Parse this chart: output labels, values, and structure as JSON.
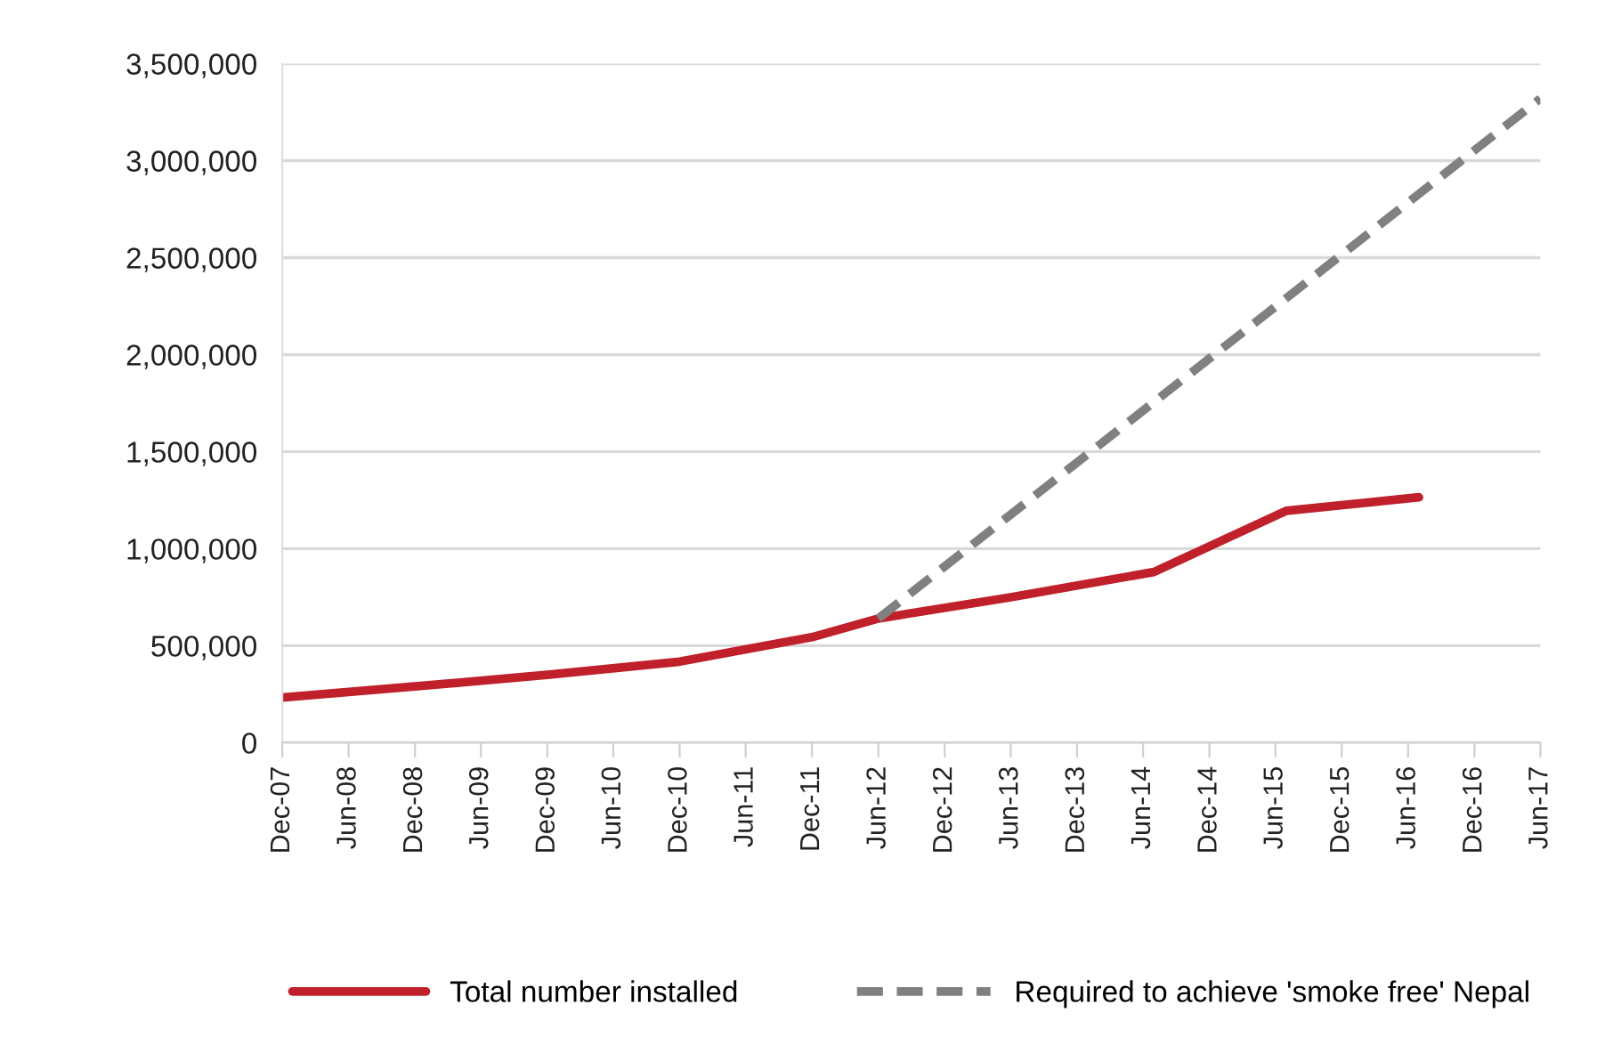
{
  "chart_data": {
    "type": "line",
    "xlim": [
      "2007-12",
      "2017-06"
    ],
    "xticks": [
      {
        "value": "2007-12",
        "label": "Dec-07"
      },
      {
        "value": "2008-06",
        "label": "Jun-08"
      },
      {
        "value": "2008-12",
        "label": "Dec-08"
      },
      {
        "value": "2009-06",
        "label": "Jun-09"
      },
      {
        "value": "2009-12",
        "label": "Dec-09"
      },
      {
        "value": "2010-06",
        "label": "Jun-10"
      },
      {
        "value": "2010-12",
        "label": "Dec-10"
      },
      {
        "value": "2011-06",
        "label": "Jun-11"
      },
      {
        "value": "2011-12",
        "label": "Dec-11"
      },
      {
        "value": "2012-06",
        "label": "Jun-12"
      },
      {
        "value": "2012-12",
        "label": "Dec-12"
      },
      {
        "value": "2013-06",
        "label": "Jun-13"
      },
      {
        "value": "2013-12",
        "label": "Dec-13"
      },
      {
        "value": "2014-06",
        "label": "Jun-14"
      },
      {
        "value": "2014-12",
        "label": "Dec-14"
      },
      {
        "value": "2015-06",
        "label": "Jun-15"
      },
      {
        "value": "2015-12",
        "label": "Dec-15"
      },
      {
        "value": "2016-06",
        "label": "Jun-16"
      },
      {
        "value": "2016-12",
        "label": "Dec-16"
      },
      {
        "value": "2017-06",
        "label": "Jun-17"
      }
    ],
    "ylim": [
      0,
      3500000
    ],
    "yticks": [
      0,
      {
        "value": 500000,
        "label": "500,000"
      },
      {
        "value": 1000000,
        "label": "1,000,000"
      },
      {
        "value": 1500000,
        "label": "1,500,000"
      },
      {
        "value": 2000000,
        "label": "2,000,000"
      },
      {
        "value": 2500000,
        "label": "2,500,000"
      },
      {
        "value": 3000000,
        "label": "3,000,000"
      },
      {
        "value": 3500000,
        "label": "3,500,000"
      }
    ],
    "grid": "y",
    "legend": "bottom",
    "series": [
      {
        "name": "Total number installed",
        "color": "#c0202a",
        "line_style": "solid",
        "x": [
          "2007-12",
          "2008-12",
          "2009-12",
          "2010-12",
          "2011-12",
          "2012-06",
          "2013-06",
          "2014-07",
          "2015-07",
          "2016-07"
        ],
        "values": [
          233000,
          290000,
          350000,
          418000,
          544000,
          640000,
          750000,
          880000,
          1195000,
          1265000
        ]
      },
      {
        "name": "Required to achieve 'smoke free' Nepal",
        "color": "#808080",
        "line_style": "dashed",
        "x": [
          "2012-06",
          "2017-06"
        ],
        "values": [
          640000,
          3320000
        ]
      }
    ]
  }
}
